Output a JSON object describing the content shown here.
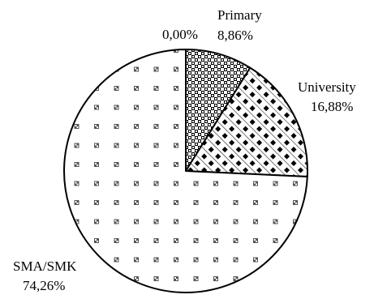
{
  "chart_data": {
    "type": "pie",
    "start_angle_deg": 0,
    "direction": "clockwise",
    "slices": [
      {
        "name": "0,00%",
        "label": "",
        "value_label": "0,00%",
        "value": 0.0,
        "pattern": "none"
      },
      {
        "name": "Primary",
        "label": "Primary",
        "value_label": "8,86%",
        "value": 8.86,
        "pattern": "checker"
      },
      {
        "name": "University",
        "label": "University",
        "value_label": "16,88%",
        "value": 16.88,
        "pattern": "diagonal-dots"
      },
      {
        "name": "SMA/SMK",
        "label": "SMA/SMK",
        "value_label": "74,26%",
        "value": 74.26,
        "pattern": "sparse-dots"
      }
    ],
    "colors": {
      "outline": "#000000",
      "background": "#ffffff",
      "pattern": "#000000"
    }
  }
}
